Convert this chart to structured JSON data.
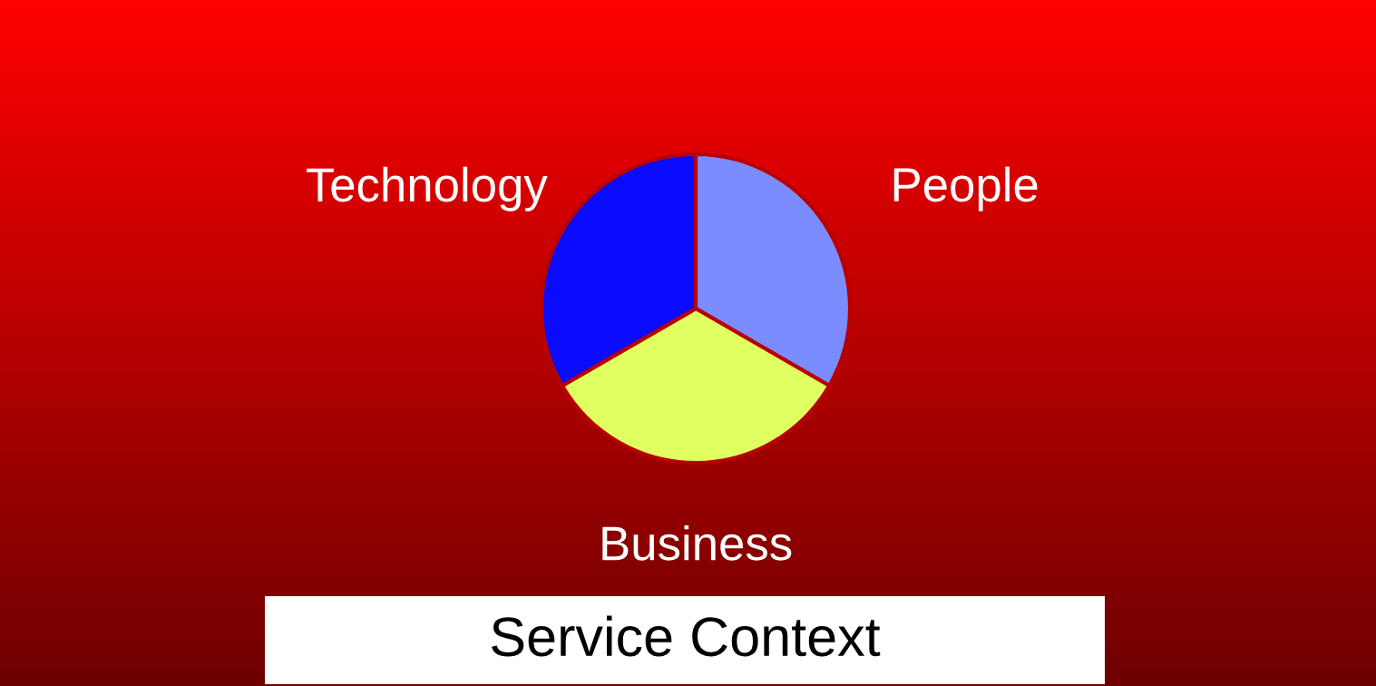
{
  "chart_data": {
    "type": "pie",
    "title": "Service Context",
    "categories": [
      "People",
      "Business",
      "Technology"
    ],
    "values": [
      33.33,
      33.33,
      33.34
    ],
    "colors": [
      "#7b8cff",
      "#e0ff60",
      "#0a0aff"
    ],
    "legend": false
  }
}
